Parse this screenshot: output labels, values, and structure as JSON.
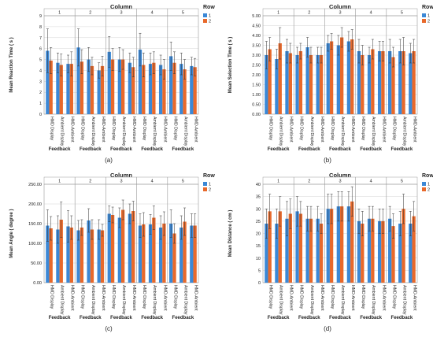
{
  "colors": {
    "row1": "#3b88d6",
    "row2": "#e8692b",
    "grid": "#d6d6d6",
    "frame": "#9a9a9a",
    "text": "#222222"
  },
  "chart_data": [
    {
      "type": "bar",
      "subcaption": "(a)",
      "title": "Column",
      "ylabel": "Mean Reaction Time ( s )",
      "xlabel": "Feedback",
      "ylim": [
        0,
        9
      ],
      "yticks": [
        "0",
        "1",
        "2",
        "3",
        "4",
        "5",
        "6",
        "7",
        "8",
        "9"
      ],
      "legend": {
        "title": "Row",
        "position": "right",
        "entries": [
          "1",
          "2"
        ]
      },
      "panels": [
        "1",
        "2",
        "3",
        "4",
        "5"
      ],
      "categories": [
        "HMD Display",
        "Ambient Display",
        "HMD-Ambient"
      ],
      "series": [
        {
          "name": "1",
          "values": [
            [
              5.8,
              4.7,
              4.6
            ],
            [
              6.1,
              5.0,
              4.0
            ],
            [
              5.7,
              5.0,
              4.7
            ],
            [
              5.9,
              4.6,
              4.5
            ],
            [
              5.3,
              4.6,
              4.4
            ]
          ],
          "errors": [
            [
              2.0,
              0.9,
              0.8
            ],
            [
              1.7,
              1.1,
              0.7
            ],
            [
              1.4,
              1.1,
              0.9
            ],
            [
              1.5,
              1.0,
              0.9
            ],
            [
              1.3,
              1.0,
              0.8
            ]
          ]
        },
        {
          "name": "2",
          "values": [
            [
              4.9,
              4.5,
              4.6
            ],
            [
              4.8,
              4.4,
              4.4
            ],
            [
              5.0,
              5.0,
              4.3
            ],
            [
              4.5,
              4.7,
              4.1
            ],
            [
              4.7,
              4.1,
              4.3
            ]
          ],
          "errors": [
            [
              1.2,
              1.0,
              1.1
            ],
            [
              1.1,
              0.8,
              0.9
            ],
            [
              1.0,
              0.9,
              0.9
            ],
            [
              1.1,
              1.0,
              0.9
            ],
            [
              1.0,
              0.9,
              0.8
            ]
          ]
        }
      ]
    },
    {
      "type": "bar",
      "subcaption": "(b)",
      "title": "Column",
      "ylabel": "Mean Selection Time ( s )",
      "xlabel": "Feedback",
      "ylim": [
        0,
        5
      ],
      "yticks": [
        "0.00",
        "0.50",
        "1.00",
        "1.50",
        "2.00",
        "2.50",
        "3.00",
        "3.50",
        "4.00",
        "4.50",
        "5.00"
      ],
      "legend": {
        "title": "Row",
        "position": "right",
        "entries": [
          "1",
          "2"
        ]
      },
      "panels": [
        "1",
        "2",
        "3",
        "4",
        "5"
      ],
      "categories": [
        "HMD Display",
        "Ambient Display",
        "HMD-Ambient"
      ],
      "series": [
        {
          "name": "1",
          "values": [
            [
              3.0,
              2.8,
              3.2
            ],
            [
              3.0,
              3.4,
              3.0
            ],
            [
              3.6,
              3.5,
              3.7
            ],
            [
              3.2,
              3.0,
              3.2
            ],
            [
              3.2,
              3.2,
              3.1
            ]
          ],
          "errors": [
            [
              0.7,
              0.5,
              0.6
            ],
            [
              0.4,
              0.5,
              0.4
            ],
            [
              0.4,
              0.5,
              0.5
            ],
            [
              0.6,
              0.4,
              0.5
            ],
            [
              0.6,
              0.6,
              0.5
            ]
          ]
        },
        {
          "name": "2",
          "values": [
            [
              3.3,
              3.6,
              3.1
            ],
            [
              3.2,
              3.0,
              3.0
            ],
            [
              3.7,
              3.9,
              3.8
            ],
            [
              3.0,
              3.3,
              3.2
            ],
            [
              2.9,
              3.2,
              3.2
            ]
          ],
          "errors": [
            [
              0.6,
              0.8,
              0.5
            ],
            [
              0.4,
              0.4,
              0.4
            ],
            [
              0.4,
              0.5,
              0.5
            ],
            [
              0.5,
              0.5,
              0.5
            ],
            [
              0.5,
              0.7,
              0.6
            ]
          ]
        }
      ]
    },
    {
      "type": "bar",
      "subcaption": "(c)",
      "title": "Column",
      "ylabel": "Mean Angle ( degree )",
      "xlabel": "Feedback",
      "ylim": [
        0,
        250
      ],
      "yticks": [
        "0.00",
        "50.00",
        "100.00",
        "150.00",
        "200.00",
        "250.00"
      ],
      "legend": {
        "title": "Row",
        "position": "right",
        "entries": [
          "1",
          "2"
        ]
      },
      "panels": [
        "1",
        "2",
        "3",
        "4",
        "5"
      ],
      "categories": [
        "HMD Display",
        "Ambient Display",
        "HMD-Ambient"
      ],
      "series": [
        {
          "name": "1",
          "values": [
            [
              145,
              135,
              143
            ],
            [
              133,
              158,
              135
            ],
            [
              175,
              165,
              175
            ],
            [
              145,
              148,
              140
            ],
            [
              150,
              140,
              145
            ]
          ],
          "errors": [
            [
              40,
              35,
              40
            ],
            [
              25,
              30,
              25
            ],
            [
              20,
              25,
              25
            ],
            [
              30,
              25,
              30
            ],
            [
              35,
              30,
              30
            ]
          ]
        },
        {
          "name": "2",
          "values": [
            [
              138,
              160,
              140
            ],
            [
              140,
              135,
              133
            ],
            [
              172,
              185,
              182
            ],
            [
              148,
              165,
              150
            ],
            [
              125,
              155,
              145
            ]
          ],
          "errors": [
            [
              30,
              45,
              30
            ],
            [
              20,
              25,
              15
            ],
            [
              20,
              25,
              25
            ],
            [
              30,
              30,
              30
            ],
            [
              25,
              35,
              30
            ]
          ]
        }
      ]
    },
    {
      "type": "bar",
      "subcaption": "(d)",
      "title": "Column",
      "ylabel": "Mean Distance ( cm )",
      "xlabel": "Feedback",
      "ylim": [
        0,
        40
      ],
      "yticks": [
        "0",
        "5",
        "10",
        "15",
        "20",
        "25",
        "30",
        "35",
        "40"
      ],
      "legend": {
        "title": "Row",
        "position": "right",
        "entries": [
          "1",
          "2"
        ]
      },
      "panels": [
        "1",
        "2",
        "3",
        "4",
        "5"
      ],
      "categories": [
        "HMD Display",
        "Ambient Display",
        "HMD-Ambient"
      ],
      "series": [
        {
          "name": "1",
          "values": [
            [
              24,
              24,
              26
            ],
            [
              29,
              26,
              26
            ],
            [
              30,
              31,
              31
            ],
            [
              25,
              26,
              25
            ],
            [
              26,
              24,
              24
            ]
          ],
          "errors": [
            [
              6,
              6,
              7
            ],
            [
              6,
              5,
              5
            ],
            [
              6,
              6,
              6
            ],
            [
              5,
              5,
              5
            ],
            [
              5,
              5,
              5
            ]
          ]
        },
        {
          "name": "2",
          "values": [
            [
              29,
              29,
              28
            ],
            [
              28,
              26,
              24
            ],
            [
              30,
              31,
              33
            ],
            [
              24,
              26,
              25
            ],
            [
              23,
              30,
              27
            ]
          ],
          "errors": [
            [
              7,
              6,
              6
            ],
            [
              5,
              5,
              4
            ],
            [
              6,
              6,
              6
            ],
            [
              5,
              5,
              5
            ],
            [
              5,
              6,
              6
            ]
          ]
        }
      ]
    }
  ]
}
